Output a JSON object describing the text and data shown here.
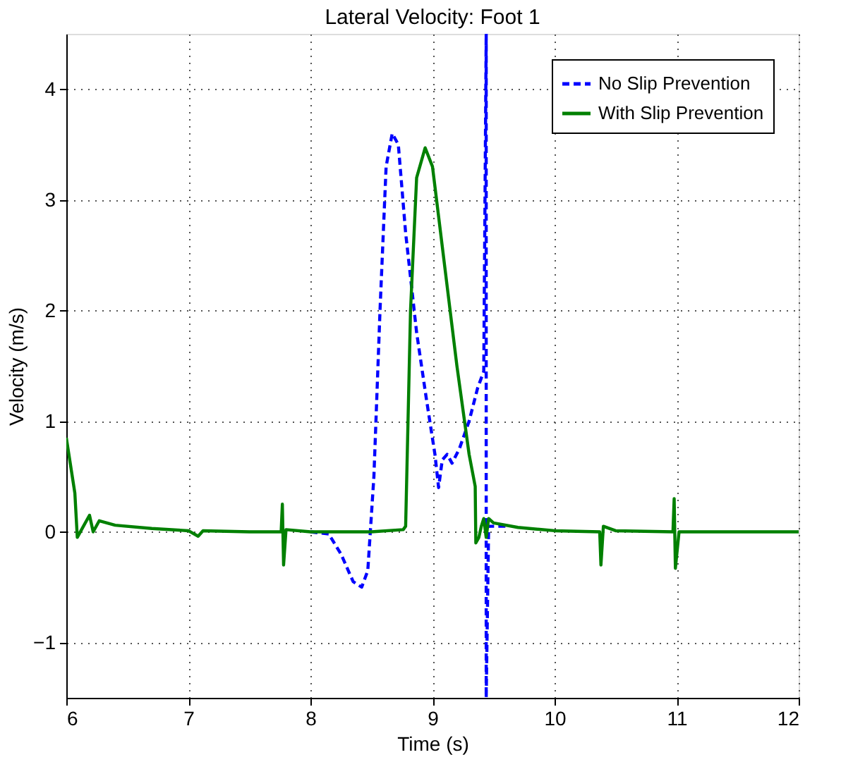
{
  "chart_data": {
    "type": "line",
    "title": "Lateral Velocity: Foot 1",
    "xlabel": "Time (s)",
    "ylabel": "Velocity (m/s)",
    "xlim": [
      6,
      12
    ],
    "xticks": [
      6,
      7,
      8,
      9,
      10,
      11,
      12
    ],
    "ylim": [
      -1.5,
      4.5
    ],
    "yticks": [
      -1,
      0,
      1,
      2,
      3,
      4
    ],
    "grid": true,
    "legend": "top right",
    "marker": "none",
    "series": [
      {
        "name": "No Slip Prevention",
        "color": "#0000ff",
        "line_style": "dashed",
        "x": [
          8.0,
          8.15,
          8.25,
          8.35,
          8.42,
          8.47,
          8.52,
          8.57,
          8.62,
          8.67,
          8.72,
          8.78,
          8.87,
          8.95,
          9.02,
          9.05,
          9.08,
          9.12,
          9.16,
          9.22,
          9.3,
          9.37,
          9.42,
          9.44,
          9.44,
          9.46,
          9.6
        ],
        "values": [
          0.0,
          -0.02,
          -0.2,
          -0.45,
          -0.5,
          -0.35,
          0.5,
          2.0,
          3.3,
          3.6,
          3.5,
          2.7,
          1.8,
          1.2,
          0.7,
          0.4,
          0.65,
          0.7,
          0.62,
          0.75,
          1.0,
          1.3,
          1.45,
          4.5,
          -1.5,
          0.05,
          0.05
        ]
      },
      {
        "name": "With Slip Prevention",
        "color": "#008000",
        "line_style": "solid",
        "x": [
          6,
          6.07,
          6.09,
          6.14,
          6.19,
          6.22,
          6.27,
          6.4,
          6.7,
          7.0,
          7.08,
          7.12,
          7.5,
          7.76,
          7.77,
          7.78,
          7.8,
          8.0,
          8.5,
          8.76,
          8.78,
          8.82,
          8.87,
          8.94,
          9.0,
          9.1,
          9.2,
          9.3,
          9.35,
          9.355,
          9.38,
          9.4,
          9.42,
          9.44,
          9.46,
          9.5,
          9.7,
          10,
          10.37,
          10.38,
          10.4,
          10.5,
          10.97,
          10.98,
          10.99,
          11.02,
          12
        ],
        "values": [
          0.85,
          0.35,
          -0.05,
          0.05,
          0.15,
          0.0,
          0.1,
          0.06,
          0.03,
          0.01,
          -0.04,
          0.01,
          0,
          0,
          0.25,
          -0.3,
          0.02,
          0.0,
          0.0,
          0.02,
          0.05,
          2.0,
          3.2,
          3.47,
          3.3,
          2.4,
          1.5,
          0.7,
          0.41,
          -0.1,
          -0.05,
          0.05,
          0.12,
          -0.05,
          0.12,
          0.08,
          0.04,
          0.01,
          0,
          -0.3,
          0.05,
          0.01,
          0,
          0.3,
          -0.33,
          0,
          0
        ]
      }
    ]
  }
}
